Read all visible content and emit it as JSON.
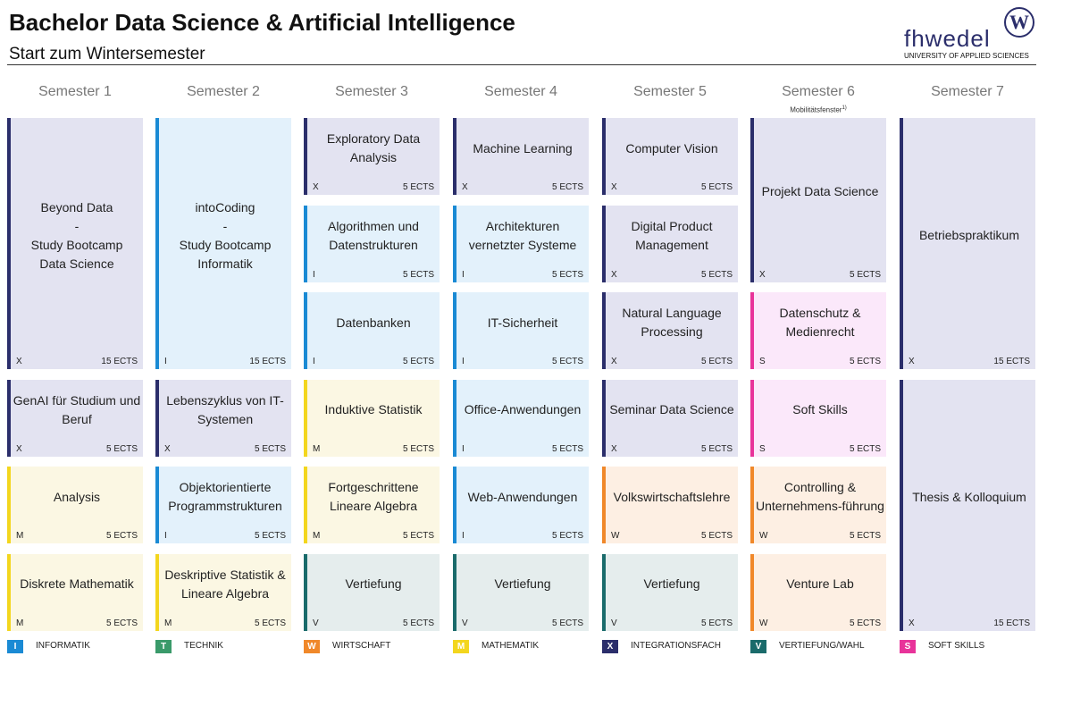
{
  "header": {
    "title": "Bachelor Data Science & Artificial Intelligence",
    "subtitle": "Start zum Wintersemester"
  },
  "logo": {
    "name": "fhwedel",
    "mark": "W",
    "tagline": "UNIVERSITY OF APPLIED SCIENCES"
  },
  "semesters": [
    {
      "label": "Semester 1",
      "modules": [
        {
          "label": "Beyond Data\n-\nStudy Bootcamp\nData Science",
          "code": "X",
          "ects": "15 ECTS"
        },
        {
          "label": "GenAI für Studium und Beruf",
          "code": "X",
          "ects": "5 ECTS"
        },
        {
          "label": "Analysis",
          "code": "M",
          "ects": "5 ECTS"
        },
        {
          "label": "Diskrete Mathematik",
          "code": "M",
          "ects": "5 ECTS"
        }
      ]
    },
    {
      "label": "Semester 2",
      "modules": [
        {
          "label": "intoCoding\n-\nStudy Bootcamp\nInformatik",
          "code": "I",
          "ects": "15 ECTS"
        },
        {
          "label": "Lebenszyklus von IT-Systemen",
          "code": "X",
          "ects": "5 ECTS"
        },
        {
          "label": "Objektorientierte Programmstrukturen",
          "code": "I",
          "ects": "5 ECTS"
        },
        {
          "label": "Deskriptive Statistik & Lineare Algebra",
          "code": "M",
          "ects": "5 ECTS"
        }
      ]
    },
    {
      "label": "Semester 3",
      "modules": [
        {
          "label": "Exploratory Data Analysis",
          "code": "X",
          "ects": "5 ECTS"
        },
        {
          "label": "Algorithmen und Datenstrukturen",
          "code": "I",
          "ects": "5 ECTS"
        },
        {
          "label": "Datenbanken",
          "code": "I",
          "ects": "5 ECTS"
        },
        {
          "label": "Induktive Statistik",
          "code": "M",
          "ects": "5 ECTS"
        },
        {
          "label": "Fortgeschrittene Lineare Algebra",
          "code": "M",
          "ects": "5 ECTS"
        },
        {
          "label": "Vertiefung",
          "code": "V",
          "ects": "5 ECTS"
        }
      ]
    },
    {
      "label": "Semester 4",
      "modules": [
        {
          "label": "Machine Learning",
          "code": "X",
          "ects": "5 ECTS"
        },
        {
          "label": "Architekturen vernetzter Systeme",
          "code": "I",
          "ects": "5 ECTS"
        },
        {
          "label": "IT-Sicherheit",
          "code": "I",
          "ects": "5 ECTS"
        },
        {
          "label": "Office-Anwendungen",
          "code": "I",
          "ects": "5 ECTS"
        },
        {
          "label": "Web-Anwendungen",
          "code": "I",
          "ects": "5 ECTS"
        },
        {
          "label": "Vertiefung",
          "code": "V",
          "ects": "5 ECTS"
        }
      ]
    },
    {
      "label": "Semester 5",
      "modules": [
        {
          "label": "Computer Vision",
          "code": "X",
          "ects": "5 ECTS"
        },
        {
          "label": "Digital Product Management",
          "code": "X",
          "ects": "5 ECTS"
        },
        {
          "label": "Natural Language Processing",
          "code": "X",
          "ects": "5 ECTS"
        },
        {
          "label": "Seminar Data Science",
          "code": "X",
          "ects": "5 ECTS"
        },
        {
          "label": "Volkswirtschaftslehre",
          "code": "W",
          "ects": "5 ECTS"
        },
        {
          "label": "Vertiefung",
          "code": "V",
          "ects": "5 ECTS"
        }
      ]
    },
    {
      "label": "Semester 6",
      "note": "Mobilitätsfenster",
      "note_ref": "1)",
      "modules": [
        {
          "label": "Projekt Data Science",
          "code": "X",
          "ects": "5 ECTS"
        },
        {
          "label": "Datenschutz & Medienrecht",
          "code": "S",
          "ects": "5 ECTS"
        },
        {
          "label": "Soft Skills",
          "code": "S",
          "ects": "5 ECTS"
        },
        {
          "label": "Controlling & Unternehmens-führung",
          "code": "W",
          "ects": "5 ECTS"
        },
        {
          "label": "Venture Lab",
          "code": "W",
          "ects": "5 ECTS"
        }
      ]
    },
    {
      "label": "Semester 7",
      "modules": [
        {
          "label": "Betriebspraktikum",
          "code": "X",
          "ects": "15 ECTS"
        },
        {
          "label": "Thesis & Kolloquium",
          "code": "X",
          "ects": "15 ECTS"
        }
      ]
    }
  ],
  "legend": [
    {
      "code": "I",
      "label": "INFORMATIK",
      "color": "#1a8ad4",
      "tint": "#e3f1fb"
    },
    {
      "code": "T",
      "label": "TECHNIK",
      "color": "#3a9a6a",
      "tint": "#e4f3ea"
    },
    {
      "code": "W",
      "label": "WIRTSCHAFT",
      "color": "#f0882a",
      "tint": "#fdefe3"
    },
    {
      "code": "M",
      "label": "MATHEMATIK",
      "color": "#f3d61e",
      "tint": "#fbf7e3"
    },
    {
      "code": "X",
      "label": "INTEGRATIONSFACH",
      "color": "#2b2e6b",
      "tint": "#e3e3f1"
    },
    {
      "code": "V",
      "label": "VERTIEFUNG/WAHL",
      "color": "#1a6b6b",
      "tint": "#e5eded"
    },
    {
      "code": "S",
      "label": "SOFT SKILLS",
      "color": "#e8339a",
      "tint": "#fbe8fa"
    }
  ]
}
